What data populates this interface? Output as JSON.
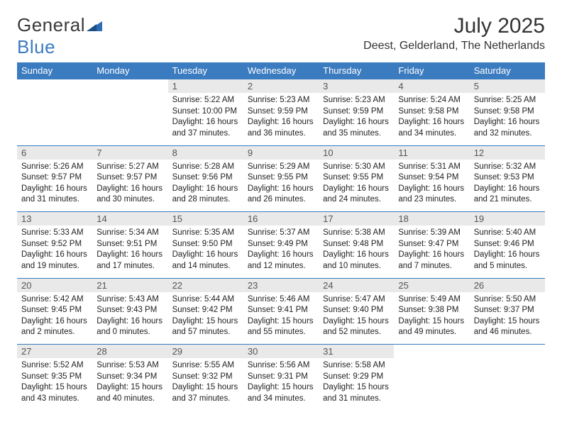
{
  "brand": {
    "part1": "General",
    "part2": "Blue"
  },
  "title": "July 2025",
  "location": "Deest, Gelderland, The Netherlands",
  "styling": {
    "accent_color": "#3b7bbf",
    "header_text_color": "#ffffff",
    "daynum_bg": "#e9e9e9",
    "daynum_color": "#555555",
    "body_bg": "#ffffff",
    "text_color": "#222222",
    "font_family": "Arial",
    "title_fontsize": 30,
    "location_fontsize": 16,
    "weekday_fontsize": 13,
    "cell_fontsize": 11.5
  },
  "weekdays": [
    "Sunday",
    "Monday",
    "Tuesday",
    "Wednesday",
    "Thursday",
    "Friday",
    "Saturday"
  ],
  "weeks": [
    [
      null,
      null,
      {
        "n": "1",
        "sr": "5:22 AM",
        "ss": "10:00 PM",
        "dl": "16 hours and 37 minutes."
      },
      {
        "n": "2",
        "sr": "5:23 AM",
        "ss": "9:59 PM",
        "dl": "16 hours and 36 minutes."
      },
      {
        "n": "3",
        "sr": "5:23 AM",
        "ss": "9:59 PM",
        "dl": "16 hours and 35 minutes."
      },
      {
        "n": "4",
        "sr": "5:24 AM",
        "ss": "9:58 PM",
        "dl": "16 hours and 34 minutes."
      },
      {
        "n": "5",
        "sr": "5:25 AM",
        "ss": "9:58 PM",
        "dl": "16 hours and 32 minutes."
      }
    ],
    [
      {
        "n": "6",
        "sr": "5:26 AM",
        "ss": "9:57 PM",
        "dl": "16 hours and 31 minutes."
      },
      {
        "n": "7",
        "sr": "5:27 AM",
        "ss": "9:57 PM",
        "dl": "16 hours and 30 minutes."
      },
      {
        "n": "8",
        "sr": "5:28 AM",
        "ss": "9:56 PM",
        "dl": "16 hours and 28 minutes."
      },
      {
        "n": "9",
        "sr": "5:29 AM",
        "ss": "9:55 PM",
        "dl": "16 hours and 26 minutes."
      },
      {
        "n": "10",
        "sr": "5:30 AM",
        "ss": "9:55 PM",
        "dl": "16 hours and 24 minutes."
      },
      {
        "n": "11",
        "sr": "5:31 AM",
        "ss": "9:54 PM",
        "dl": "16 hours and 23 minutes."
      },
      {
        "n": "12",
        "sr": "5:32 AM",
        "ss": "9:53 PM",
        "dl": "16 hours and 21 minutes."
      }
    ],
    [
      {
        "n": "13",
        "sr": "5:33 AM",
        "ss": "9:52 PM",
        "dl": "16 hours and 19 minutes."
      },
      {
        "n": "14",
        "sr": "5:34 AM",
        "ss": "9:51 PM",
        "dl": "16 hours and 17 minutes."
      },
      {
        "n": "15",
        "sr": "5:35 AM",
        "ss": "9:50 PM",
        "dl": "16 hours and 14 minutes."
      },
      {
        "n": "16",
        "sr": "5:37 AM",
        "ss": "9:49 PM",
        "dl": "16 hours and 12 minutes."
      },
      {
        "n": "17",
        "sr": "5:38 AM",
        "ss": "9:48 PM",
        "dl": "16 hours and 10 minutes."
      },
      {
        "n": "18",
        "sr": "5:39 AM",
        "ss": "9:47 PM",
        "dl": "16 hours and 7 minutes."
      },
      {
        "n": "19",
        "sr": "5:40 AM",
        "ss": "9:46 PM",
        "dl": "16 hours and 5 minutes."
      }
    ],
    [
      {
        "n": "20",
        "sr": "5:42 AM",
        "ss": "9:45 PM",
        "dl": "16 hours and 2 minutes."
      },
      {
        "n": "21",
        "sr": "5:43 AM",
        "ss": "9:43 PM",
        "dl": "16 hours and 0 minutes."
      },
      {
        "n": "22",
        "sr": "5:44 AM",
        "ss": "9:42 PM",
        "dl": "15 hours and 57 minutes."
      },
      {
        "n": "23",
        "sr": "5:46 AM",
        "ss": "9:41 PM",
        "dl": "15 hours and 55 minutes."
      },
      {
        "n": "24",
        "sr": "5:47 AM",
        "ss": "9:40 PM",
        "dl": "15 hours and 52 minutes."
      },
      {
        "n": "25",
        "sr": "5:49 AM",
        "ss": "9:38 PM",
        "dl": "15 hours and 49 minutes."
      },
      {
        "n": "26",
        "sr": "5:50 AM",
        "ss": "9:37 PM",
        "dl": "15 hours and 46 minutes."
      }
    ],
    [
      {
        "n": "27",
        "sr": "5:52 AM",
        "ss": "9:35 PM",
        "dl": "15 hours and 43 minutes."
      },
      {
        "n": "28",
        "sr": "5:53 AM",
        "ss": "9:34 PM",
        "dl": "15 hours and 40 minutes."
      },
      {
        "n": "29",
        "sr": "5:55 AM",
        "ss": "9:32 PM",
        "dl": "15 hours and 37 minutes."
      },
      {
        "n": "30",
        "sr": "5:56 AM",
        "ss": "9:31 PM",
        "dl": "15 hours and 34 minutes."
      },
      {
        "n": "31",
        "sr": "5:58 AM",
        "ss": "9:29 PM",
        "dl": "15 hours and 31 minutes."
      },
      null,
      null
    ]
  ],
  "labels": {
    "sunrise": "Sunrise: ",
    "sunset": "Sunset: ",
    "daylight": "Daylight: "
  }
}
